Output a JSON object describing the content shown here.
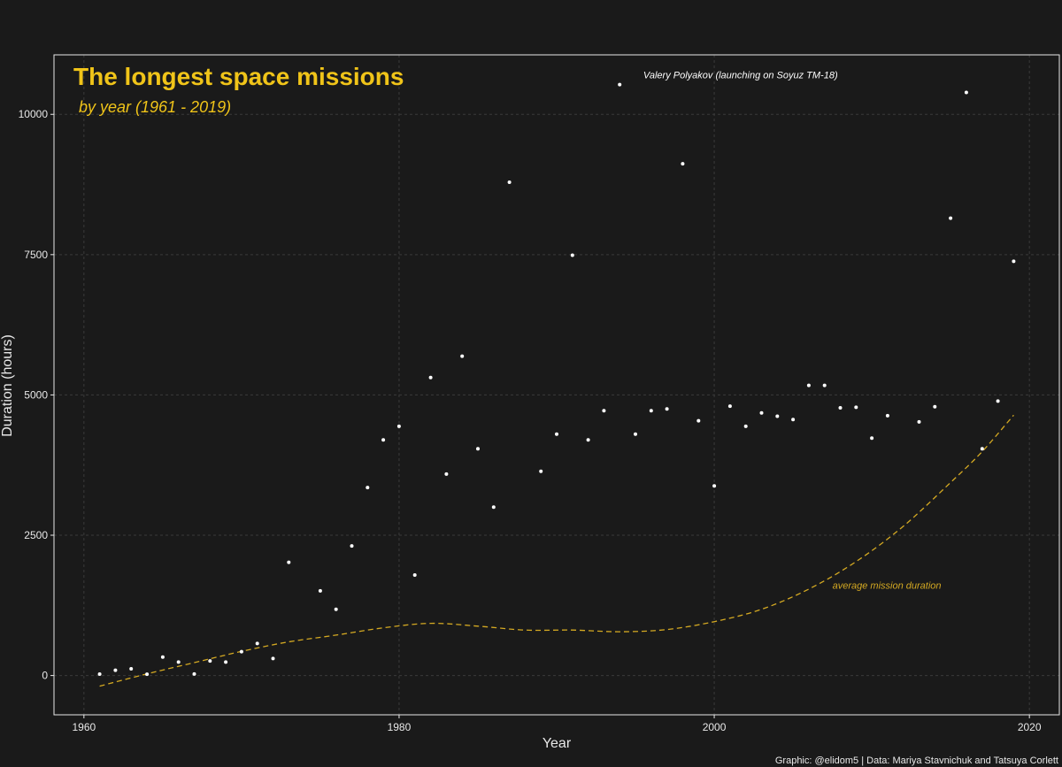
{
  "chart_data": {
    "type": "scatter",
    "title": "The longest space missions",
    "subtitle": "by year (1961 - 2019)",
    "xlabel": "Year",
    "ylabel": "Duration (hours)",
    "caption": "Graphic: @elidom5 | Data: Mariya Stavnichuk and Tatsuya Corlett",
    "xlim": [
      1958.1,
      2021.9
    ],
    "ylim": [
      -700,
      11060
    ],
    "xticks": [
      1960,
      1980,
      2000,
      2020
    ],
    "yticks": [
      0,
      2500,
      5000,
      7500,
      10000
    ],
    "grid": true,
    "colors": {
      "background": "#1a1a1a",
      "points": "#ffffff",
      "accent": "#f0c419",
      "trend": "#d4a922",
      "grid": "#3a3a3a"
    },
    "points": [
      [
        1961,
        25
      ],
      [
        1962,
        95
      ],
      [
        1963,
        119
      ],
      [
        1964,
        24
      ],
      [
        1965,
        330
      ],
      [
        1966,
        240
      ],
      [
        1967,
        27
      ],
      [
        1968,
        260
      ],
      [
        1969,
        240
      ],
      [
        1970,
        425
      ],
      [
        1971,
        570
      ],
      [
        1972,
        302
      ],
      [
        1973,
        2017
      ],
      [
        1975,
        1509
      ],
      [
        1976,
        1180
      ],
      [
        1977,
        2310
      ],
      [
        1978,
        3350
      ],
      [
        1979,
        4200
      ],
      [
        1980,
        4440
      ],
      [
        1981,
        1790
      ],
      [
        1982,
        5310
      ],
      [
        1983,
        3590
      ],
      [
        1984,
        5690
      ],
      [
        1985,
        4040
      ],
      [
        1986,
        3000
      ],
      [
        1987,
        8790
      ],
      [
        1989,
        3640
      ],
      [
        1990,
        4300
      ],
      [
        1991,
        7490
      ],
      [
        1992,
        4200
      ],
      [
        1993,
        4720
      ],
      [
        1994,
        10530
      ],
      [
        1995,
        4300
      ],
      [
        1996,
        4720
      ],
      [
        1997,
        4750
      ],
      [
        1998,
        9120
      ],
      [
        1999,
        4540
      ],
      [
        2000,
        3380
      ],
      [
        2001,
        4800
      ],
      [
        2002,
        4440
      ],
      [
        2003,
        4680
      ],
      [
        2004,
        4620
      ],
      [
        2005,
        4560
      ],
      [
        2006,
        5170
      ],
      [
        2007,
        5170
      ],
      [
        2008,
        4770
      ],
      [
        2009,
        4780
      ],
      [
        2010,
        4230
      ],
      [
        2011,
        4630
      ],
      [
        2013,
        4520
      ],
      [
        2014,
        4790
      ],
      [
        2015,
        8150
      ],
      [
        2016,
        10390
      ],
      [
        2017,
        4040
      ],
      [
        2018,
        4890
      ],
      [
        2019,
        7380
      ]
    ],
    "trend": {
      "name": "average mission duration",
      "points": [
        [
          1961,
          -190
        ],
        [
          1964,
          30
        ],
        [
          1967,
          230
        ],
        [
          1970,
          430
        ],
        [
          1973,
          600
        ],
        [
          1976,
          720
        ],
        [
          1979,
          850
        ],
        [
          1982,
          930
        ],
        [
          1985,
          880
        ],
        [
          1988,
          810
        ],
        [
          1991,
          810
        ],
        [
          1994,
          780
        ],
        [
          1997,
          820
        ],
        [
          2000,
          960
        ],
        [
          2003,
          1180
        ],
        [
          2006,
          1540
        ],
        [
          2009,
          2030
        ],
        [
          2012,
          2660
        ],
        [
          2015,
          3440
        ],
        [
          2017,
          3990
        ],
        [
          2019,
          4640
        ]
      ]
    },
    "annotations": [
      {
        "text": "Valery Polyakov (launching on Soyuz TM-18)",
        "x": 1995.5,
        "y": 10640
      },
      {
        "text": "average mission duration",
        "x": 2007.5,
        "y": 1550
      }
    ]
  }
}
